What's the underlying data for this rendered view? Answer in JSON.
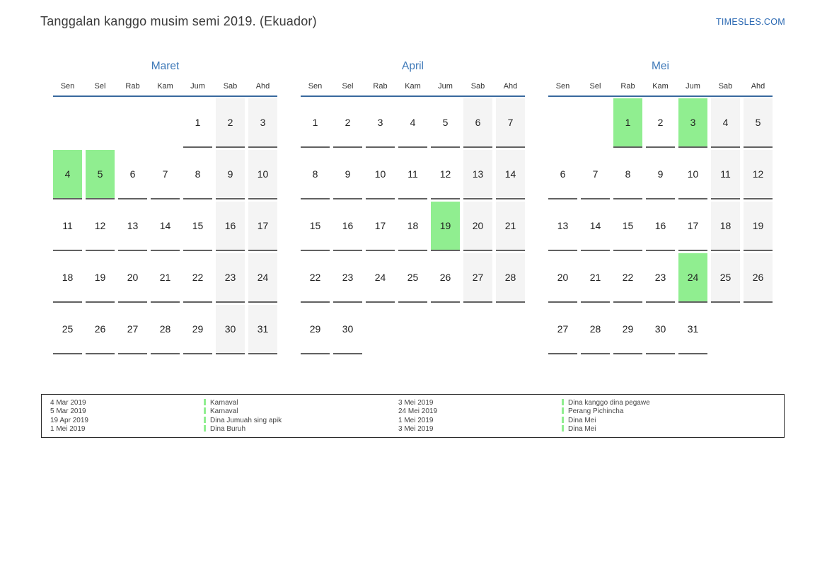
{
  "page": {
    "title": "Tanggalan kanggo musim semi 2019. (Ekuador)",
    "site_link": "TIMESLES.COM"
  },
  "colors": {
    "month_title_blue": "#3e79b8",
    "link_blue": "#2a68b2",
    "header_rule_blue": "#38699e",
    "holiday_green": "#90ee90",
    "weekend_gray": "#f4f4f4",
    "cell_underline_gray": "#616161"
  },
  "weekday_headers": [
    "Sen",
    "Sel",
    "Rab",
    "Kam",
    "Jum",
    "Sab",
    "Ahd"
  ],
  "months": [
    {
      "name": "Maret",
      "weeks": [
        [
          null,
          null,
          null,
          null,
          1,
          2,
          3
        ],
        [
          4,
          5,
          6,
          7,
          8,
          9,
          10
        ],
        [
          11,
          12,
          13,
          14,
          15,
          16,
          17
        ],
        [
          18,
          19,
          20,
          21,
          22,
          23,
          24
        ],
        [
          25,
          26,
          27,
          28,
          29,
          30,
          31
        ]
      ],
      "holidays": [
        4,
        5
      ]
    },
    {
      "name": "April",
      "weeks": [
        [
          1,
          2,
          3,
          4,
          5,
          6,
          7
        ],
        [
          8,
          9,
          10,
          11,
          12,
          13,
          14
        ],
        [
          15,
          16,
          17,
          18,
          19,
          20,
          21
        ],
        [
          22,
          23,
          24,
          25,
          26,
          27,
          28
        ],
        [
          29,
          30,
          null,
          null,
          null,
          null,
          null
        ]
      ],
      "holidays": [
        19
      ]
    },
    {
      "name": "Mei",
      "weeks": [
        [
          null,
          null,
          1,
          2,
          3,
          4,
          5
        ],
        [
          6,
          7,
          8,
          9,
          10,
          11,
          12
        ],
        [
          13,
          14,
          15,
          16,
          17,
          18,
          19
        ],
        [
          20,
          21,
          22,
          23,
          24,
          25,
          26
        ],
        [
          27,
          28,
          29,
          30,
          31,
          null,
          null
        ]
      ],
      "holidays": [
        1,
        3,
        24
      ]
    }
  ],
  "legend": {
    "columns": [
      {
        "entries": [
          {
            "date": "4 Mar 2019",
            "event": "Karnaval"
          },
          {
            "date": "5 Mar 2019",
            "event": "Karnaval"
          },
          {
            "date": "19 Apr 2019",
            "event": "Dina Jumuah sing apik"
          },
          {
            "date": "1 Mei 2019",
            "event": "Dina Buruh"
          }
        ]
      },
      {
        "entries": [
          {
            "date": "3 Mei 2019",
            "event": "Dina kanggo dina pegawe"
          },
          {
            "date": "24 Mei 2019",
            "event": "Perang Pichincha"
          },
          {
            "date": "1 Mei 2019",
            "event": "Dina Mei"
          },
          {
            "date": "3 Mei 2019",
            "event": "Dina Mei"
          }
        ]
      }
    ]
  }
}
